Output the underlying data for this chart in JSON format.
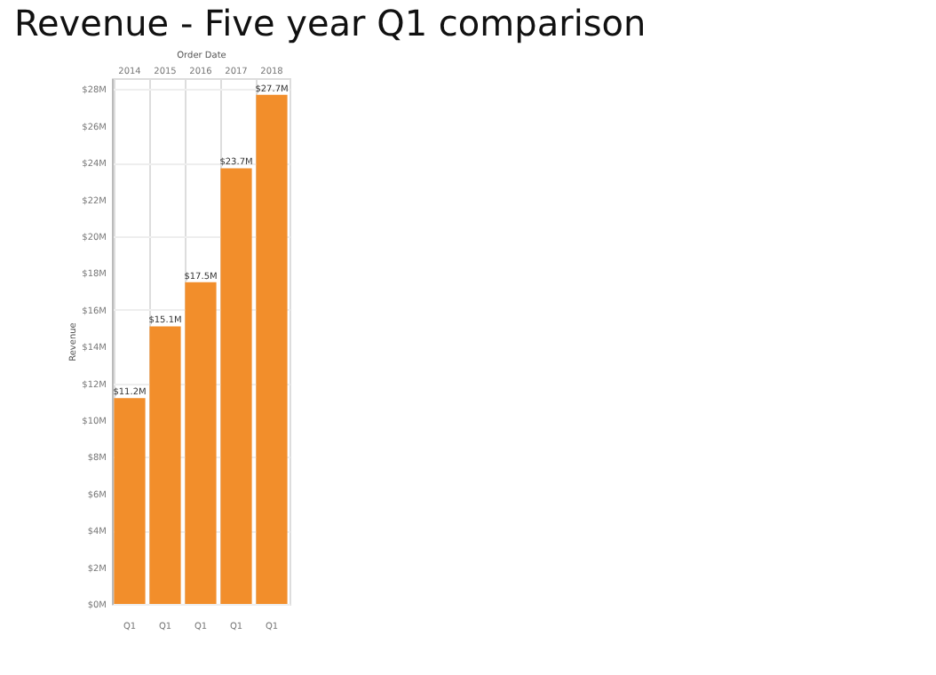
{
  "chart_data": {
    "type": "bar",
    "title": "Revenue  - Five year Q1 comparison",
    "xlabel": "Order Date",
    "ylabel": "Revenue",
    "categories": [
      "2014",
      "2015",
      "2016",
      "2017",
      "2018"
    ],
    "values": [
      11.2,
      15.1,
      17.5,
      23.7,
      27.7
    ],
    "value_labels": [
      "$11.2M",
      "$15.1M",
      "$17.5M",
      "$23.7M",
      "$27.7M"
    ],
    "color": "#f28e2b",
    "ylim": [
      0,
      28.6
    ],
    "yticks": [
      {
        "value": 0,
        "label": "$0M"
      },
      {
        "value": 2,
        "label": "$2M"
      },
      {
        "value": 4,
        "label": "$4M"
      },
      {
        "value": 6,
        "label": "$6M"
      },
      {
        "value": 8,
        "label": "$8M"
      },
      {
        "value": 10,
        "label": "$10M"
      },
      {
        "value": 12,
        "label": "$12M"
      },
      {
        "value": 14,
        "label": "$14M"
      },
      {
        "value": 16,
        "label": "$16M"
      },
      {
        "value": 18,
        "label": "$18M"
      },
      {
        "value": 20,
        "label": "$20M"
      },
      {
        "value": 22,
        "label": "$22M"
      },
      {
        "value": 24,
        "label": "$24M"
      },
      {
        "value": 26,
        "label": "$26M"
      },
      {
        "value": 28,
        "label": "$28M"
      }
    ],
    "annotations": [
      "Q1",
      "Q1",
      "Q1",
      "Q1",
      "Q1"
    ],
    "grid": true
  }
}
